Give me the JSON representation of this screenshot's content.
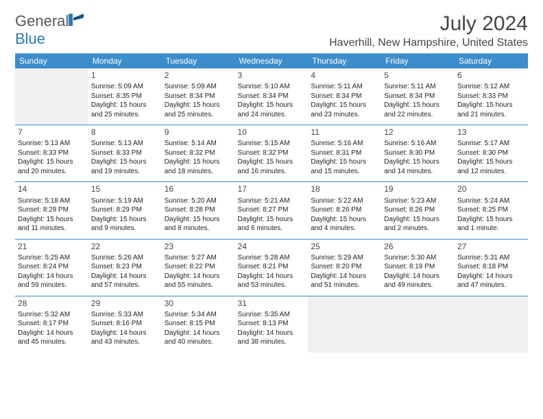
{
  "brand": {
    "part1": "General",
    "part2": "Blue"
  },
  "title": "July 2024",
  "location": "Haverhill, New Hampshire, United States",
  "colors": {
    "header_bg": "#3c8dcc",
    "header_fg": "#ffffff",
    "border": "#3c8dcc",
    "empty_bg": "#f0f0f0",
    "brand_blue": "#2a7ab9",
    "text": "#222222"
  },
  "weekdays": [
    "Sunday",
    "Monday",
    "Tuesday",
    "Wednesday",
    "Thursday",
    "Friday",
    "Saturday"
  ],
  "weeks": [
    [
      null,
      {
        "d": "1",
        "sr": "Sunrise: 5:09 AM",
        "ss": "Sunset: 8:35 PM",
        "dl": "Daylight: 15 hours and 25 minutes."
      },
      {
        "d": "2",
        "sr": "Sunrise: 5:09 AM",
        "ss": "Sunset: 8:34 PM",
        "dl": "Daylight: 15 hours and 25 minutes."
      },
      {
        "d": "3",
        "sr": "Sunrise: 5:10 AM",
        "ss": "Sunset: 8:34 PM",
        "dl": "Daylight: 15 hours and 24 minutes."
      },
      {
        "d": "4",
        "sr": "Sunrise: 5:11 AM",
        "ss": "Sunset: 8:34 PM",
        "dl": "Daylight: 15 hours and 23 minutes."
      },
      {
        "d": "5",
        "sr": "Sunrise: 5:11 AM",
        "ss": "Sunset: 8:34 PM",
        "dl": "Daylight: 15 hours and 22 minutes."
      },
      {
        "d": "6",
        "sr": "Sunrise: 5:12 AM",
        "ss": "Sunset: 8:33 PM",
        "dl": "Daylight: 15 hours and 21 minutes."
      }
    ],
    [
      {
        "d": "7",
        "sr": "Sunrise: 5:13 AM",
        "ss": "Sunset: 8:33 PM",
        "dl": "Daylight: 15 hours and 20 minutes."
      },
      {
        "d": "8",
        "sr": "Sunrise: 5:13 AM",
        "ss": "Sunset: 8:33 PM",
        "dl": "Daylight: 15 hours and 19 minutes."
      },
      {
        "d": "9",
        "sr": "Sunrise: 5:14 AM",
        "ss": "Sunset: 8:32 PM",
        "dl": "Daylight: 15 hours and 18 minutes."
      },
      {
        "d": "10",
        "sr": "Sunrise: 5:15 AM",
        "ss": "Sunset: 8:32 PM",
        "dl": "Daylight: 15 hours and 16 minutes."
      },
      {
        "d": "11",
        "sr": "Sunrise: 5:16 AM",
        "ss": "Sunset: 8:31 PM",
        "dl": "Daylight: 15 hours and 15 minutes."
      },
      {
        "d": "12",
        "sr": "Sunrise: 5:16 AM",
        "ss": "Sunset: 8:30 PM",
        "dl": "Daylight: 15 hours and 14 minutes."
      },
      {
        "d": "13",
        "sr": "Sunrise: 5:17 AM",
        "ss": "Sunset: 8:30 PM",
        "dl": "Daylight: 15 hours and 12 minutes."
      }
    ],
    [
      {
        "d": "14",
        "sr": "Sunrise: 5:18 AM",
        "ss": "Sunset: 8:29 PM",
        "dl": "Daylight: 15 hours and 11 minutes."
      },
      {
        "d": "15",
        "sr": "Sunrise: 5:19 AM",
        "ss": "Sunset: 8:29 PM",
        "dl": "Daylight: 15 hours and 9 minutes."
      },
      {
        "d": "16",
        "sr": "Sunrise: 5:20 AM",
        "ss": "Sunset: 8:28 PM",
        "dl": "Daylight: 15 hours and 8 minutes."
      },
      {
        "d": "17",
        "sr": "Sunrise: 5:21 AM",
        "ss": "Sunset: 8:27 PM",
        "dl": "Daylight: 15 hours and 6 minutes."
      },
      {
        "d": "18",
        "sr": "Sunrise: 5:22 AM",
        "ss": "Sunset: 8:26 PM",
        "dl": "Daylight: 15 hours and 4 minutes."
      },
      {
        "d": "19",
        "sr": "Sunrise: 5:23 AM",
        "ss": "Sunset: 8:26 PM",
        "dl": "Daylight: 15 hours and 2 minutes."
      },
      {
        "d": "20",
        "sr": "Sunrise: 5:24 AM",
        "ss": "Sunset: 8:25 PM",
        "dl": "Daylight: 15 hours and 1 minute."
      }
    ],
    [
      {
        "d": "21",
        "sr": "Sunrise: 5:25 AM",
        "ss": "Sunset: 8:24 PM",
        "dl": "Daylight: 14 hours and 59 minutes."
      },
      {
        "d": "22",
        "sr": "Sunrise: 5:26 AM",
        "ss": "Sunset: 8:23 PM",
        "dl": "Daylight: 14 hours and 57 minutes."
      },
      {
        "d": "23",
        "sr": "Sunrise: 5:27 AM",
        "ss": "Sunset: 8:22 PM",
        "dl": "Daylight: 14 hours and 55 minutes."
      },
      {
        "d": "24",
        "sr": "Sunrise: 5:28 AM",
        "ss": "Sunset: 8:21 PM",
        "dl": "Daylight: 14 hours and 53 minutes."
      },
      {
        "d": "25",
        "sr": "Sunrise: 5:29 AM",
        "ss": "Sunset: 8:20 PM",
        "dl": "Daylight: 14 hours and 51 minutes."
      },
      {
        "d": "26",
        "sr": "Sunrise: 5:30 AM",
        "ss": "Sunset: 8:19 PM",
        "dl": "Daylight: 14 hours and 49 minutes."
      },
      {
        "d": "27",
        "sr": "Sunrise: 5:31 AM",
        "ss": "Sunset: 8:18 PM",
        "dl": "Daylight: 14 hours and 47 minutes."
      }
    ],
    [
      {
        "d": "28",
        "sr": "Sunrise: 5:32 AM",
        "ss": "Sunset: 8:17 PM",
        "dl": "Daylight: 14 hours and 45 minutes."
      },
      {
        "d": "29",
        "sr": "Sunrise: 5:33 AM",
        "ss": "Sunset: 8:16 PM",
        "dl": "Daylight: 14 hours and 43 minutes."
      },
      {
        "d": "30",
        "sr": "Sunrise: 5:34 AM",
        "ss": "Sunset: 8:15 PM",
        "dl": "Daylight: 14 hours and 40 minutes."
      },
      {
        "d": "31",
        "sr": "Sunrise: 5:35 AM",
        "ss": "Sunset: 8:13 PM",
        "dl": "Daylight: 14 hours and 38 minutes."
      },
      null,
      null,
      null
    ]
  ]
}
